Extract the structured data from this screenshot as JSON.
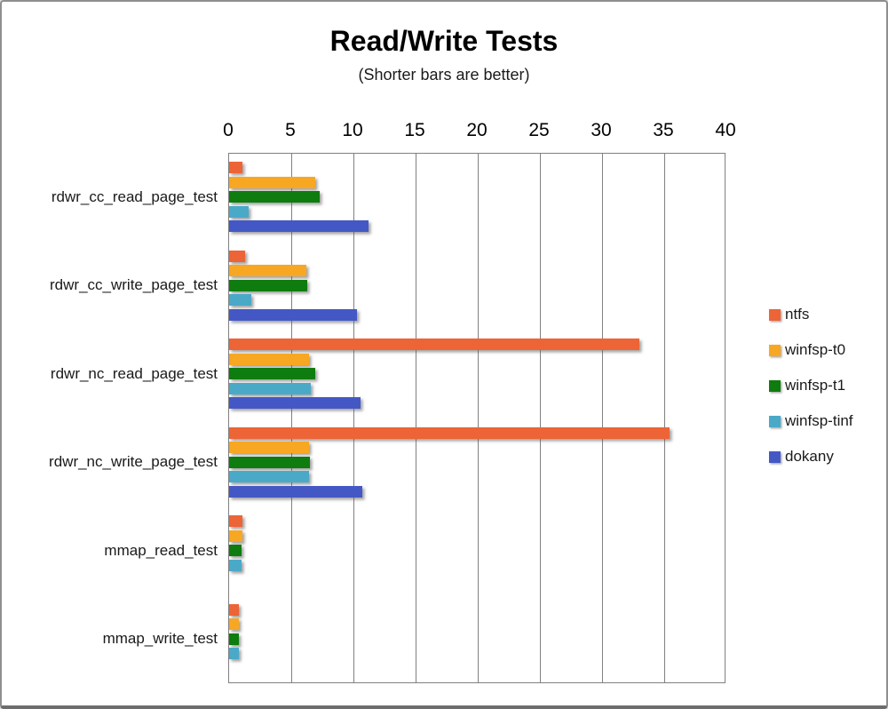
{
  "window": {
    "background": "#ffffff",
    "border_color": "#8f8f8f"
  },
  "chart_data": {
    "type": "bar",
    "orientation": "horizontal",
    "title": "Read/Write Tests",
    "subtitle": "(Shorter bars are better)",
    "categories": [
      "rdwr_cc_read_page_test",
      "rdwr_cc_write_page_test",
      "rdwr_nc_read_page_test",
      "rdwr_nc_write_page_test",
      "mmap_read_test",
      "mmap_write_test"
    ],
    "series": [
      {
        "name": "ntfs",
        "color": "#ED6437",
        "values": [
          1.1,
          1.3,
          33.0,
          35.4,
          1.1,
          0.8
        ]
      },
      {
        "name": "winfsp-t0",
        "color": "#F8A722",
        "values": [
          6.9,
          6.2,
          6.4,
          6.4,
          1.1,
          0.8
        ]
      },
      {
        "name": "winfsp-t1",
        "color": "#0E7C0E",
        "values": [
          7.3,
          6.3,
          6.9,
          6.5,
          1.0,
          0.8
        ]
      },
      {
        "name": "winfsp-tinf",
        "color": "#4BA9C8",
        "values": [
          1.6,
          1.8,
          6.6,
          6.4,
          1.0,
          0.8
        ]
      },
      {
        "name": "dokany",
        "color": "#4458C5",
        "values": [
          11.2,
          10.3,
          10.6,
          10.7,
          0,
          0
        ]
      }
    ],
    "xlim": [
      0,
      40
    ],
    "xticks": [
      0,
      5,
      10,
      15,
      20,
      25,
      30,
      35,
      40
    ],
    "grid": true,
    "gridline_color": "#808080",
    "plot_border_color": "#808080",
    "legend_position": "right"
  }
}
